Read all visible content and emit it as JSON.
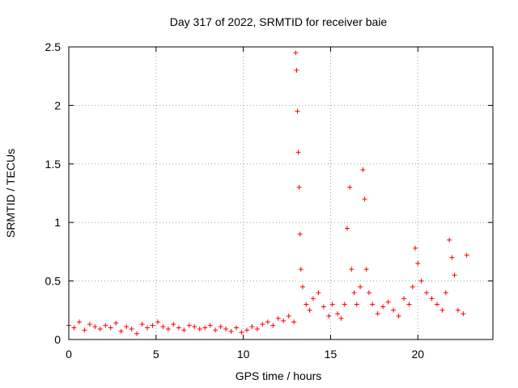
{
  "chart_data": {
    "type": "scatter",
    "title": "Day 317 of 2022, SRMTID for receiver baie",
    "xlabel": "GPS time / hours",
    "ylabel": "SRMTID / TECUs",
    "xlim": [
      0,
      24.3
    ],
    "ylim": [
      0,
      2.5
    ],
    "xticks": [
      0,
      5,
      10,
      15,
      20
    ],
    "xtick_labels": [
      "0",
      "5",
      "10",
      "15",
      "20"
    ],
    "yticks": [
      0,
      0.5,
      1,
      1.5,
      2,
      2.5
    ],
    "ytick_labels": [
      "0",
      "0.5",
      "1",
      "1.5",
      "2",
      "2.5"
    ],
    "grid": true,
    "marker": "+",
    "color": "#ff0000",
    "series": [
      {
        "name": "SRMTID",
        "x": [
          0.0,
          0.3,
          0.6,
          0.9,
          1.2,
          1.5,
          1.8,
          2.1,
          2.4,
          2.7,
          3.0,
          3.3,
          3.6,
          3.9,
          4.2,
          4.5,
          4.8,
          5.1,
          5.4,
          5.7,
          6.0,
          6.3,
          6.6,
          6.9,
          7.2,
          7.5,
          7.8,
          8.1,
          8.4,
          8.7,
          9.0,
          9.3,
          9.6,
          9.9,
          10.2,
          10.5,
          10.8,
          11.1,
          11.4,
          11.7,
          12.0,
          12.3,
          12.6,
          12.9,
          13.0,
          13.05,
          13.1,
          13.15,
          13.2,
          13.25,
          13.3,
          13.4,
          13.6,
          13.8,
          14.0,
          14.3,
          14.6,
          14.9,
          15.1,
          15.4,
          15.6,
          15.8,
          15.95,
          16.1,
          16.2,
          16.35,
          16.5,
          16.7,
          16.85,
          16.95,
          17.05,
          17.2,
          17.4,
          17.7,
          18.0,
          18.3,
          18.6,
          18.9,
          19.2,
          19.5,
          19.7,
          19.85,
          20.0,
          20.2,
          20.5,
          20.8,
          21.1,
          21.4,
          21.6,
          21.8,
          21.95,
          22.1,
          22.3,
          22.6,
          22.8
        ],
        "y": [
          0.12,
          0.1,
          0.15,
          0.08,
          0.13,
          0.11,
          0.09,
          0.12,
          0.1,
          0.14,
          0.07,
          0.11,
          0.09,
          0.05,
          0.13,
          0.1,
          0.12,
          0.15,
          0.11,
          0.09,
          0.13,
          0.1,
          0.08,
          0.12,
          0.11,
          0.09,
          0.1,
          0.12,
          0.08,
          0.11,
          0.09,
          0.07,
          0.1,
          0.06,
          0.08,
          0.11,
          0.09,
          0.13,
          0.15,
          0.12,
          0.18,
          0.16,
          0.2,
          0.15,
          2.45,
          2.3,
          1.95,
          1.6,
          1.3,
          0.9,
          0.6,
          0.45,
          0.3,
          0.25,
          0.35,
          0.4,
          0.28,
          0.2,
          0.3,
          0.22,
          0.18,
          0.3,
          0.95,
          1.3,
          0.6,
          0.4,
          0.3,
          0.45,
          1.45,
          1.2,
          0.6,
          0.4,
          0.3,
          0.22,
          0.28,
          0.32,
          0.25,
          0.2,
          0.35,
          0.3,
          0.45,
          0.78,
          0.65,
          0.5,
          0.4,
          0.35,
          0.3,
          0.25,
          0.4,
          0.85,
          0.7,
          0.55,
          0.25,
          0.22,
          0.72
        ]
      }
    ]
  }
}
